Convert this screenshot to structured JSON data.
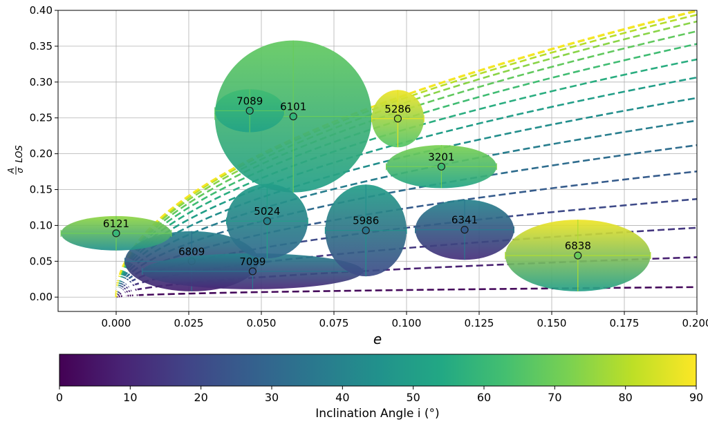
{
  "chart_data": {
    "type": "scatter",
    "xlabel": "e",
    "ylabel_main": "A",
    "ylabel_den": "σ",
    "ylabel_sub": "LOS",
    "xlim": [
      -0.02,
      0.2
    ],
    "ylim": [
      -0.02,
      0.4
    ],
    "xticks": [
      "0.000",
      "0.025",
      "0.050",
      "0.075",
      "0.100",
      "0.125",
      "0.150",
      "0.175",
      "0.200"
    ],
    "xtick_values": [
      0.0,
      0.025,
      0.05,
      0.075,
      0.1,
      0.125,
      0.15,
      0.175,
      0.2
    ],
    "yticks": [
      "0.00",
      "0.05",
      "0.10",
      "0.15",
      "0.20",
      "0.25",
      "0.30",
      "0.35",
      "0.40"
    ],
    "ytick_values": [
      0.0,
      0.05,
      0.1,
      0.15,
      0.2,
      0.25,
      0.3,
      0.35,
      0.4
    ],
    "grid": true,
    "colorbar": {
      "label": "Inclination Angle i (°)",
      "range": [
        0,
        90
      ],
      "ticks": [
        "0",
        "10",
        "20",
        "30",
        "40",
        "50",
        "60",
        "70",
        "80",
        "90"
      ],
      "tick_values": [
        0,
        10,
        20,
        30,
        40,
        50,
        60,
        70,
        80,
        90
      ],
      "colormap": "viridis"
    },
    "curve_inclinations_deg": [
      2,
      8,
      14,
      20,
      26,
      32,
      38,
      44,
      50,
      56,
      62,
      68,
      74,
      80,
      86,
      89
    ],
    "points": [
      {
        "label": "6121",
        "e": 0.0,
        "y": 0.089,
        "e_err": 0.019,
        "y_err": 0.024,
        "inc_lo": 45,
        "inc_hi": 75
      },
      {
        "label": "6809",
        "e": 0.026,
        "y": 0.05,
        "e_err": 0.023,
        "y_err": 0.042,
        "inc_lo": 8,
        "inc_hi": 40
      },
      {
        "label": "7099",
        "e": 0.047,
        "y": 0.036,
        "e_err": 0.038,
        "y_err": 0.025,
        "inc_lo": 10,
        "inc_hi": 40
      },
      {
        "label": "5024",
        "e": 0.052,
        "y": 0.106,
        "e_err": 0.014,
        "y_err": 0.052,
        "inc_lo": 30,
        "inc_hi": 50
      },
      {
        "label": "7089",
        "e": 0.046,
        "y": 0.26,
        "e_err": 0.012,
        "y_err": 0.03,
        "inc_lo": 52,
        "inc_hi": 62
      },
      {
        "label": "6101",
        "e": 0.061,
        "y": 0.252,
        "e_err": 0.027,
        "y_err": 0.106,
        "inc_lo": 50,
        "inc_hi": 68
      },
      {
        "label": "5286",
        "e": 0.097,
        "y": 0.249,
        "e_err": 0.009,
        "y_err": 0.04,
        "inc_lo": 65,
        "inc_hi": 88
      },
      {
        "label": "3201",
        "e": 0.112,
        "y": 0.182,
        "e_err": 0.019,
        "y_err": 0.03,
        "inc_lo": 52,
        "inc_hi": 72
      },
      {
        "label": "5986",
        "e": 0.086,
        "y": 0.093,
        "e_err": 0.014,
        "y_err": 0.064,
        "inc_lo": 20,
        "inc_hi": 50
      },
      {
        "label": "6341",
        "e": 0.12,
        "y": 0.094,
        "e_err": 0.017,
        "y_err": 0.042,
        "inc_lo": 12,
        "inc_hi": 40
      },
      {
        "label": "6838",
        "e": 0.159,
        "y": 0.058,
        "e_err": 0.025,
        "y_err": 0.05,
        "inc_lo": 50,
        "inc_hi": 88
      }
    ]
  }
}
